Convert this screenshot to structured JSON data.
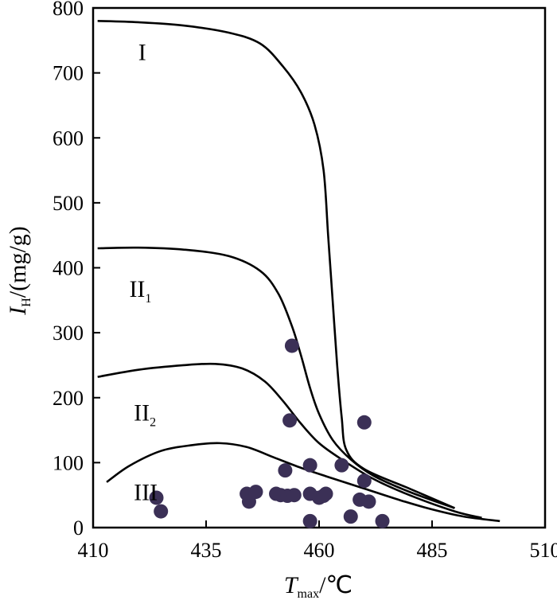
{
  "chart_data": {
    "type": "scatter",
    "title": "",
    "xlabel": {
      "main": "T",
      "sub": "max",
      "unit": "/℃"
    },
    "ylabel": {
      "main": "I",
      "sub": "H",
      "unit": "/(mg/g)"
    },
    "xlim": [
      410,
      510
    ],
    "ylim": [
      0,
      800
    ],
    "x_ticks": [
      410,
      435,
      460,
      485,
      510
    ],
    "y_ticks": [
      0,
      100,
      200,
      300,
      400,
      500,
      600,
      700,
      800
    ],
    "grid": false,
    "boundary_curves": [
      {
        "id": "curve-I",
        "points": [
          [
            411,
            780
          ],
          [
            420,
            778
          ],
          [
            430,
            773
          ],
          [
            440,
            762
          ],
          [
            447,
            745
          ],
          [
            452,
            710
          ],
          [
            456,
            670
          ],
          [
            459,
            620
          ],
          [
            461,
            550
          ],
          [
            462,
            450
          ],
          [
            463,
            350
          ],
          [
            464,
            250
          ],
          [
            465,
            170
          ],
          [
            466,
            120
          ],
          [
            470,
            90
          ],
          [
            480,
            60
          ],
          [
            490,
            30
          ]
        ]
      },
      {
        "id": "curve-II1",
        "points": [
          [
            411,
            430
          ],
          [
            420,
            431
          ],
          [
            430,
            428
          ],
          [
            440,
            418
          ],
          [
            447,
            395
          ],
          [
            451,
            360
          ],
          [
            454,
            310
          ],
          [
            456,
            265
          ],
          [
            458,
            215
          ],
          [
            460,
            175
          ],
          [
            463,
            135
          ],
          [
            467,
            105
          ],
          [
            472,
            80
          ],
          [
            480,
            55
          ],
          [
            490,
            30
          ]
        ]
      },
      {
        "id": "curve-II2",
        "points": [
          [
            411,
            232
          ],
          [
            420,
            243
          ],
          [
            430,
            250
          ],
          [
            437,
            252
          ],
          [
            443,
            245
          ],
          [
            448,
            225
          ],
          [
            452,
            195
          ],
          [
            456,
            160
          ],
          [
            460,
            130
          ],
          [
            465,
            105
          ],
          [
            472,
            75
          ],
          [
            480,
            50
          ],
          [
            490,
            25
          ],
          [
            496,
            15
          ]
        ]
      },
      {
        "id": "curve-III",
        "points": [
          [
            413,
            70
          ],
          [
            418,
            95
          ],
          [
            425,
            118
          ],
          [
            432,
            127
          ],
          [
            438,
            130
          ],
          [
            444,
            124
          ],
          [
            450,
            108
          ],
          [
            456,
            92
          ],
          [
            462,
            78
          ],
          [
            470,
            60
          ],
          [
            478,
            42
          ],
          [
            485,
            28
          ],
          [
            492,
            17
          ],
          [
            500,
            10
          ]
        ]
      }
    ],
    "zone_labels": [
      {
        "id": "I",
        "text": "I",
        "sub": "",
        "x": 420,
        "y": 720
      },
      {
        "id": "II1",
        "text": "II",
        "sub": "1",
        "x": 418,
        "y": 355
      },
      {
        "id": "II2",
        "text": "II",
        "sub": "2",
        "x": 419,
        "y": 165
      },
      {
        "id": "III",
        "text": "III",
        "sub": "",
        "x": 419,
        "y": 42
      }
    ],
    "points": [
      [
        424,
        46
      ],
      [
        425,
        25
      ],
      [
        444,
        52
      ],
      [
        444.5,
        40
      ],
      [
        446,
        55
      ],
      [
        450.5,
        52
      ],
      [
        451.5,
        50
      ],
      [
        452.5,
        88
      ],
      [
        453,
        49
      ],
      [
        453.5,
        165
      ],
      [
        454,
        280
      ],
      [
        454.5,
        50
      ],
      [
        458,
        10
      ],
      [
        458,
        52
      ],
      [
        458,
        96
      ],
      [
        460,
        46
      ],
      [
        461,
        49
      ],
      [
        461.5,
        52
      ],
      [
        465,
        96
      ],
      [
        467,
        17
      ],
      [
        469,
        43
      ],
      [
        470,
        72
      ],
      [
        470,
        162
      ],
      [
        471,
        40
      ],
      [
        474,
        10
      ]
    ]
  }
}
